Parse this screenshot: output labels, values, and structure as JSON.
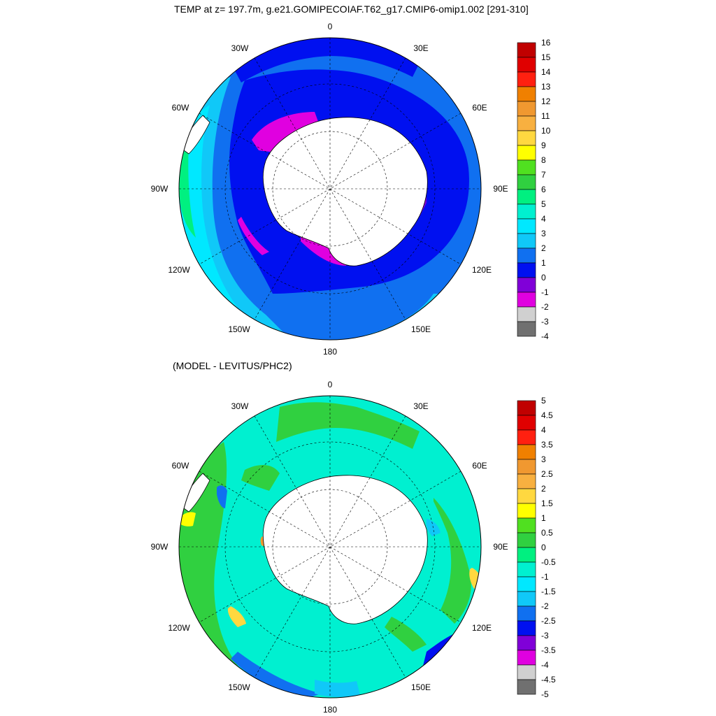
{
  "titles": {
    "top": "TEMP at z= 197.7m, g.e21.GOMIPECOIAF.T62_g17.CMIP6-omip1.002 [291-310]",
    "bottom": "(MODEL - LEVITUS/PHC2)"
  },
  "map_labels": {
    "lon_0": "0",
    "lon_30e": "30E",
    "lon_60e": "60E",
    "lon_90e": "90E",
    "lon_120e": "120E",
    "lon_150e": "150E",
    "lon_180": "180",
    "lon_150w": "150W",
    "lon_120w": "120W",
    "lon_90w": "90W",
    "lon_60w": "60W",
    "lon_30w": "30W"
  },
  "colorbar_top": {
    "labels": [
      "16",
      "15",
      "14",
      "13",
      "12",
      "11",
      "10",
      "9",
      "8",
      "7",
      "6",
      "5",
      "4",
      "3",
      "2",
      "1",
      "0",
      "-1",
      "-2",
      "-3",
      "-4"
    ],
    "colors": [
      "#c00000",
      "#e00000",
      "#ff2010",
      "#f08000",
      "#f09830",
      "#f8b040",
      "#ffd840",
      "#ffff00",
      "#50e020",
      "#30d040",
      "#00f080",
      "#00f0d0",
      "#00e8ff",
      "#10c8f8",
      "#1070f0",
      "#0010f0",
      "#8000d8",
      "#e000e0",
      "#d0d0d0",
      "#707070"
    ]
  },
  "colorbar_bottom": {
    "labels": [
      "5",
      "4.5",
      "4",
      "3.5",
      "3",
      "2.5",
      "2",
      "1.5",
      "1",
      "0.5",
      "0",
      "-0.5",
      "-1",
      "-1.5",
      "-2",
      "-2.5",
      "-3",
      "-3.5",
      "-4",
      "-4.5",
      "-5"
    ],
    "colors": [
      "#c00000",
      "#e00000",
      "#ff2010",
      "#f08000",
      "#f09830",
      "#f8b040",
      "#ffd840",
      "#ffff00",
      "#50e020",
      "#30d040",
      "#00f080",
      "#00f0d0",
      "#00e8ff",
      "#10c8f8",
      "#1070f0",
      "#0010f0",
      "#8000d8",
      "#e000e0",
      "#d0d0d0",
      "#707070"
    ]
  }
}
